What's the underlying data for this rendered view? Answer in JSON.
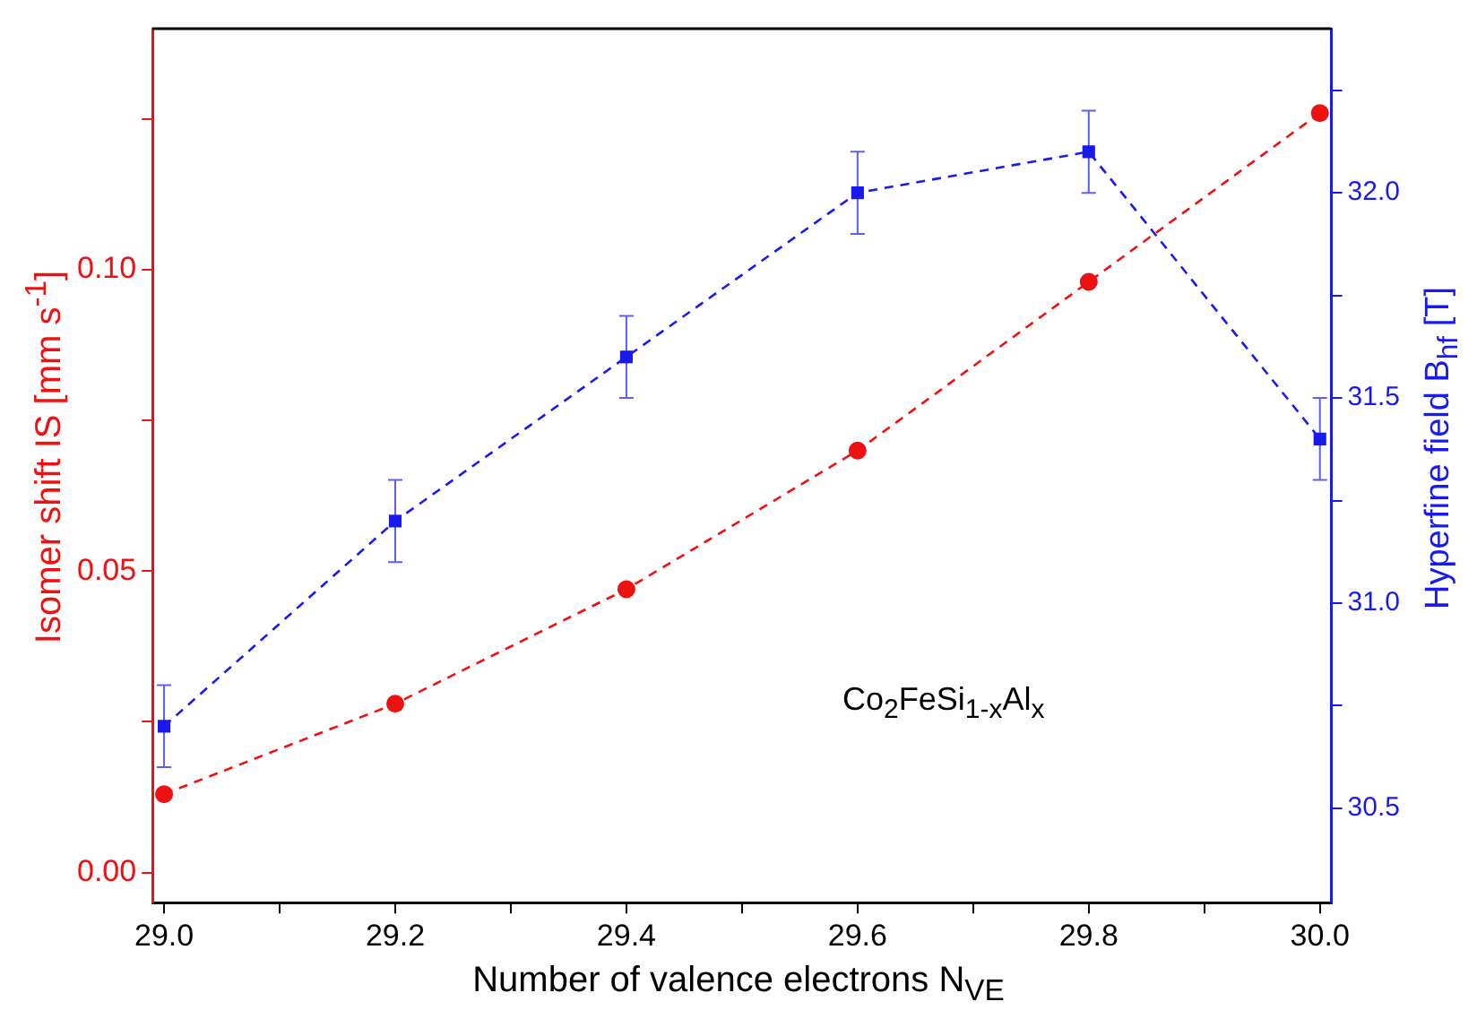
{
  "chart_data": {
    "type": "line",
    "xlabel": "Number of valence electrons N$_{VE}$",
    "ylabel": "Isomer shift IS [mm s$^{-1}$]",
    "y2label": "Hyperfine field B$_{hf}$ [T]",
    "annotations": [
      "Co$_{2}$FeSi$_{1-x}$Al$_{x}$"
    ],
    "x": [
      29.0,
      29.2,
      29.4,
      29.6,
      29.8,
      30.0
    ],
    "series": [
      {
        "color": "#ee1111",
        "marker": "circle",
        "line_style": "dashed",
        "values": [
          0.013,
          0.028,
          0.047,
          0.07,
          0.098,
          0.126
        ]
      },
      {
        "color": "#1a1aee",
        "marker": "square",
        "line_style": "dashed",
        "axis": "y2",
        "values": [
          30.7,
          31.2,
          31.6,
          32.0,
          32.1,
          31.4
        ],
        "errors": [
          0.1,
          0.1,
          0.1,
          0.1,
          0.1,
          0.1
        ]
      }
    ],
    "xlim": [
      28.99,
      30.01
    ],
    "xticks": [
      {
        "value": 29,
        "label": "29.0"
      },
      {
        "value": 29.1,
        "label": null
      },
      29.2,
      {
        "value": 29.3,
        "label": null
      },
      29.4,
      {
        "value": 29.5,
        "label": null
      },
      29.6,
      {
        "value": 29.7,
        "label": null
      },
      29.8,
      {
        "value": 29.9,
        "label": null
      },
      {
        "value": 30,
        "label": "30.0"
      }
    ],
    "ylim": [
      -0.005,
      0.14
    ],
    "yticks": [
      {
        "value": 0,
        "label": "0.00"
      },
      {
        "value": 0.025,
        "label": null
      },
      0.05,
      {
        "value": 0.075,
        "label": null
      },
      {
        "value": 0.1,
        "label": "0.10"
      },
      {
        "value": 0.125,
        "label": null
      }
    ],
    "y2lim": [
      30.27,
      32.4
    ],
    "y2ticks": [
      30.5,
      {
        "value": 30.75,
        "label": null
      },
      {
        "value": 31,
        "label": "31.0"
      },
      {
        "value": 31.25,
        "label": null
      },
      31.5,
      {
        "value": 31.75,
        "label": null
      },
      {
        "value": 32,
        "label": "32.0"
      },
      {
        "value": 32.25,
        "label": null
      }
    ],
    "grid": false,
    "legend": false
  }
}
